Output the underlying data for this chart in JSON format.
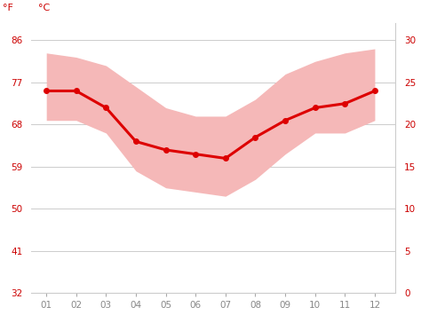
{
  "months": [
    1,
    2,
    3,
    4,
    5,
    6,
    7,
    8,
    9,
    10,
    11,
    12
  ],
  "month_labels": [
    "01",
    "02",
    "03",
    "04",
    "05",
    "06",
    "07",
    "08",
    "09",
    "10",
    "11",
    "12"
  ],
  "mean_temp": [
    24.0,
    24.0,
    22.0,
    18.0,
    17.0,
    16.5,
    16.0,
    18.5,
    20.5,
    22.0,
    22.5,
    24.0
  ],
  "max_temp": [
    28.5,
    28.0,
    27.0,
    24.5,
    22.0,
    21.0,
    21.0,
    23.0,
    26.0,
    27.5,
    28.5,
    29.0
  ],
  "min_temp": [
    20.5,
    20.5,
    19.0,
    14.5,
    12.5,
    12.0,
    11.5,
    13.5,
    16.5,
    19.0,
    19.0,
    20.5
  ],
  "line_color": "#dd0000",
  "band_color": "#f5b8b8",
  "background_color": "#ffffff",
  "grid_color": "#cccccc",
  "tick_color": "#cc0000",
  "ylim_c": [
    0,
    32
  ],
  "yticks_c": [
    0,
    5,
    10,
    15,
    20,
    25,
    30
  ],
  "yticks_f": [
    32,
    41,
    50,
    59,
    68,
    77,
    86
  ],
  "ylabel_left": "°F",
  "ylabel_right": "°C",
  "figsize": [
    4.74,
    3.55
  ],
  "dpi": 100
}
